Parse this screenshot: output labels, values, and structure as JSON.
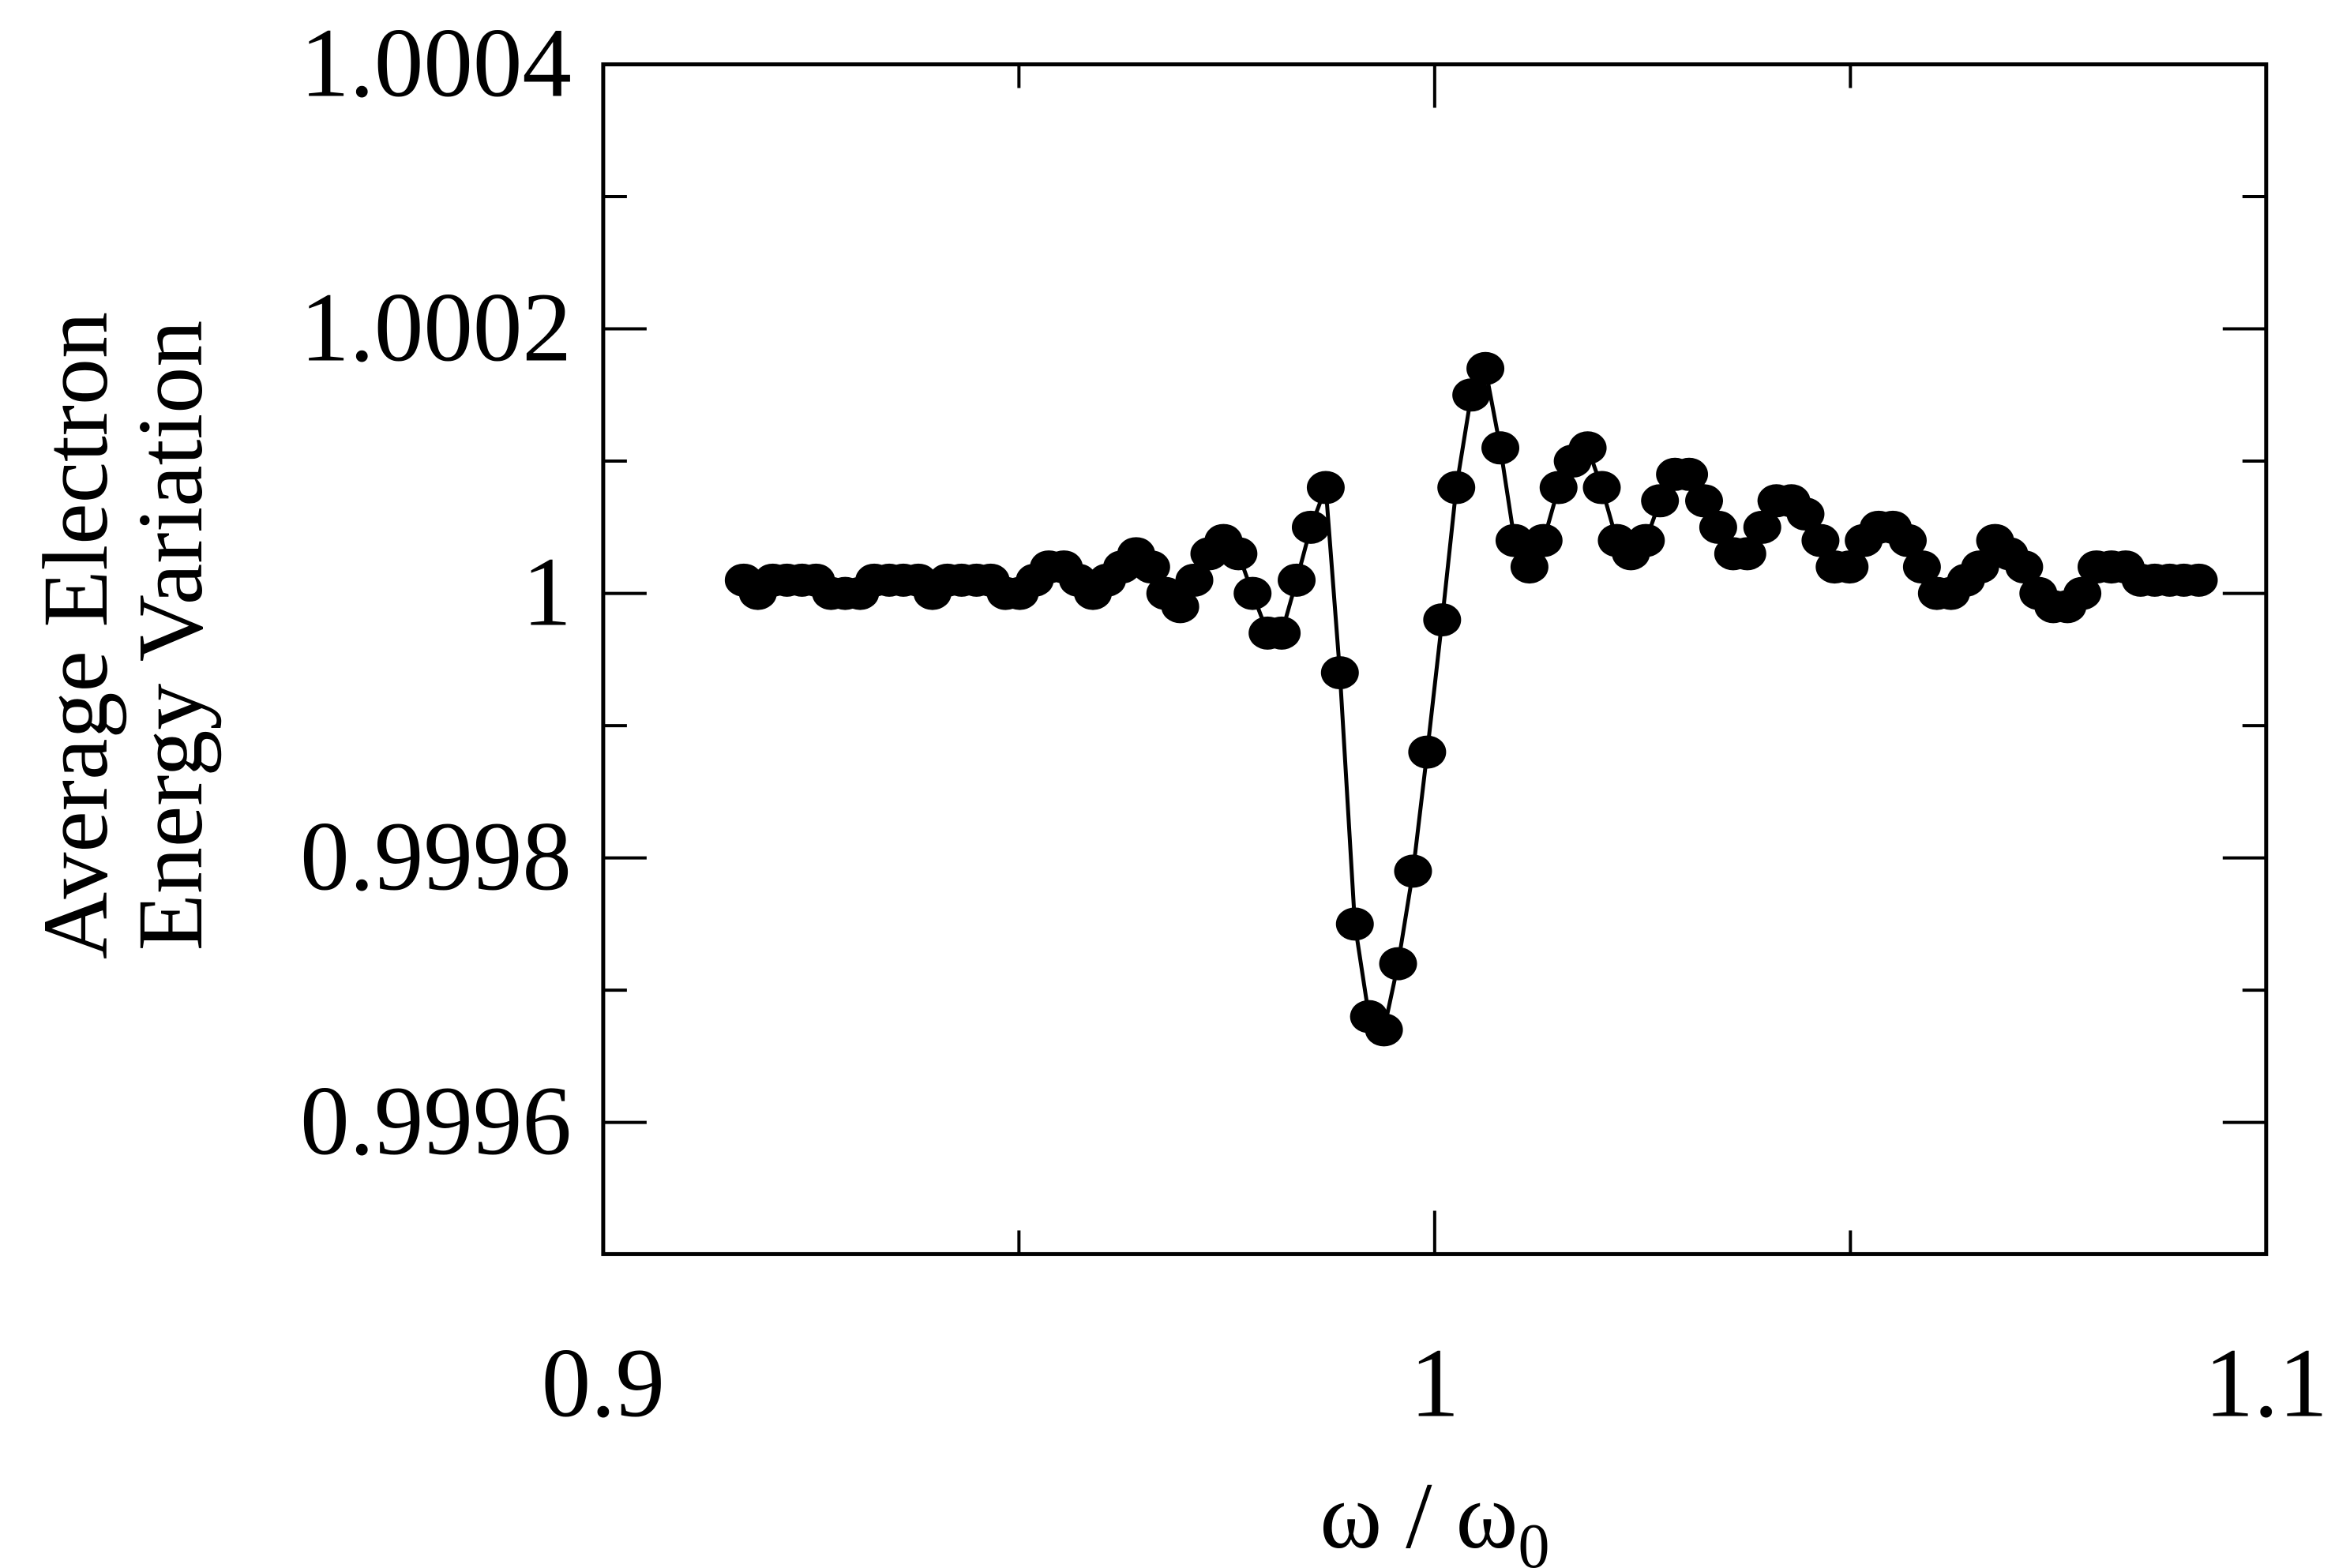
{
  "chart_data": {
    "type": "line",
    "title": "",
    "xlabel": "ω / ω0",
    "ylabel": "Average Electron Energy Variation",
    "ylabel_lines": [
      "Average Electron",
      "Energy Variation"
    ],
    "xlim": [
      0.9,
      1.1
    ],
    "ylim": [
      0.9995,
      1.0004
    ],
    "x_ticks": [
      0.9,
      1.0,
      1.1
    ],
    "x_tick_labels": [
      "0.9",
      "1",
      "1.1"
    ],
    "x_minor_ticks": [
      0.95,
      1.05
    ],
    "y_ticks": [
      0.9996,
      0.9998,
      1.0,
      1.0002,
      1.0004
    ],
    "y_tick_labels": [
      "0.9996",
      "0.9998",
      "1",
      "1.0002",
      "1.0004"
    ],
    "y_minor_ticks": [
      0.9997,
      0.9999,
      1.0001,
      1.0003
    ],
    "grid": false,
    "legend": null,
    "marker": "filled-circle",
    "line_color": "#000000",
    "marker_color": "#000000",
    "series": [
      {
        "name": "Average electron energy variation",
        "x": [
          0.9169,
          0.9186,
          0.9204,
          0.9221,
          0.9239,
          0.9256,
          0.9274,
          0.9291,
          0.9309,
          0.9326,
          0.9344,
          0.9361,
          0.9379,
          0.9396,
          0.9414,
          0.9431,
          0.9449,
          0.9466,
          0.9484,
          0.9501,
          0.9519,
          0.9536,
          0.9554,
          0.9571,
          0.9589,
          0.9606,
          0.9624,
          0.9641,
          0.9659,
          0.9676,
          0.9694,
          0.9711,
          0.9729,
          0.9746,
          0.9764,
          0.9781,
          0.9799,
          0.9816,
          0.9834,
          0.9851,
          0.9869,
          0.9886,
          0.9904,
          0.9921,
          0.9939,
          0.9956,
          0.9974,
          0.9991,
          1.0009,
          1.0026,
          1.0044,
          1.0061,
          1.0079,
          1.0096,
          1.0114,
          1.0131,
          1.0149,
          1.0166,
          1.0184,
          1.0201,
          1.0219,
          1.0236,
          1.0254,
          1.0271,
          1.0289,
          1.0306,
          1.0324,
          1.0341,
          1.0359,
          1.0376,
          1.0394,
          1.0411,
          1.0429,
          1.0446,
          1.0464,
          1.0481,
          1.0499,
          1.0516,
          1.0534,
          1.0551,
          1.0569,
          1.0586,
          1.0604,
          1.0621,
          1.0639,
          1.0656,
          1.0674,
          1.0691,
          1.0709,
          1.0726,
          1.0744,
          1.0761,
          1.0779,
          1.0796,
          1.0814,
          1.0831,
          1.0849,
          1.0866,
          1.0884,
          1.0901,
          1.0919
        ],
        "y": [
          1.00001,
          1.0,
          1.00001,
          1.00001,
          1.00001,
          1.00001,
          1.0,
          1.0,
          1.0,
          1.00001,
          1.00001,
          1.00001,
          1.00001,
          1.0,
          1.00001,
          1.00001,
          1.00001,
          1.00001,
          1.0,
          1.0,
          1.00001,
          1.00002,
          1.00002,
          1.00001,
          1.0,
          1.00001,
          1.00002,
          1.00003,
          1.00002,
          1.0,
          0.99999,
          1.00001,
          1.00003,
          1.00004,
          1.00003,
          1.0,
          0.99997,
          0.99997,
          1.00001,
          1.00005,
          1.00008,
          0.99994,
          0.99975,
          0.99968,
          0.99967,
          0.99972,
          0.99979,
          0.99988,
          0.99998,
          1.00008,
          1.00015,
          1.00017,
          1.00011,
          1.00004,
          1.00002,
          1.00004,
          1.00008,
          1.0001,
          1.00011,
          1.00008,
          1.00004,
          1.00003,
          1.00004,
          1.00007,
          1.00009,
          1.00009,
          1.00007,
          1.00005,
          1.00003,
          1.00003,
          1.00005,
          1.00007,
          1.00007,
          1.00006,
          1.00004,
          1.00002,
          1.00002,
          1.00004,
          1.00005,
          1.00005,
          1.00004,
          1.00002,
          1.0,
          1.0,
          1.00001,
          1.00002,
          1.00004,
          1.00003,
          1.00002,
          1.0,
          0.99999,
          0.99999,
          1.0,
          1.00002,
          1.00002,
          1.00002,
          1.00001,
          1.00001,
          1.00001,
          1.00001,
          1.00001
        ]
      }
    ]
  }
}
